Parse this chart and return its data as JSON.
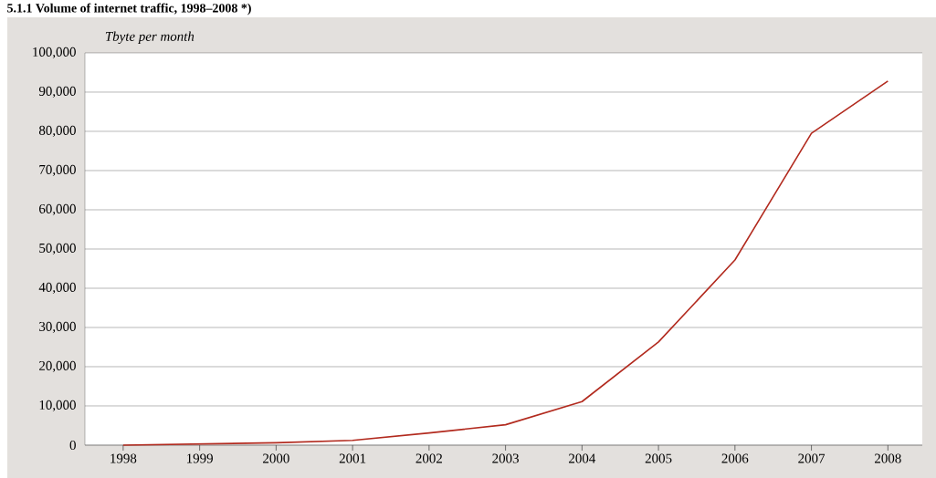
{
  "chart_data": {
    "type": "line",
    "title": "5.1.1  Volume of internet traffic, 1998–2008 *)",
    "ylabel": "Tbyte per month",
    "categories": [
      "1998",
      "1999",
      "2000",
      "2001",
      "2002",
      "2003",
      "2004",
      "2005",
      "2006",
      "2007",
      "2008"
    ],
    "values": [
      0,
      300,
      600,
      1200,
      3100,
      5200,
      11100,
      26300,
      47200,
      79500,
      92800
    ],
    "color": "#b22a1e",
    "ylim": [
      0,
      100000
    ],
    "yticks": [
      0,
      {
        "value": 10000,
        "label": "10,000"
      },
      {
        "value": 20000,
        "label": "20,000"
      },
      {
        "value": 30000,
        "label": "30,000"
      },
      {
        "value": 40000,
        "label": "40,000"
      },
      {
        "value": 50000,
        "label": "50,000"
      },
      {
        "value": 60000,
        "label": "60,000"
      },
      {
        "value": 70000,
        "label": "70,000"
      },
      {
        "value": 80000,
        "label": "80,000"
      },
      {
        "value": 90000,
        "label": "90,000"
      },
      {
        "value": 100000,
        "label": "100,000"
      }
    ],
    "grid": "y",
    "marker": "none",
    "line_style": "solid"
  }
}
